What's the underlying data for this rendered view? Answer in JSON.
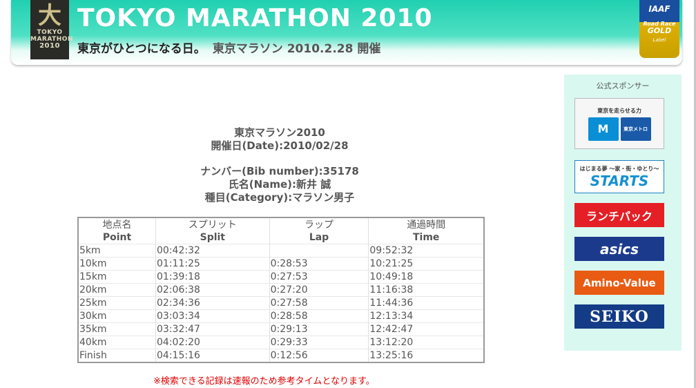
{
  "banner": {
    "logo_glyph": "大",
    "logo_line1": "TOKYO",
    "logo_line2": "MARATHON",
    "logo_line3": "2010",
    "title": "TOKYO MARATHON 2010",
    "subtitle_a": "東京がひとつになる日。",
    "subtitle_b": "東京マラソン 2010.2.28 開催",
    "iaaf_title": "IAAF",
    "iaaf_road": "Road Race",
    "iaaf_gold": "GOLD",
    "iaaf_label": "Label"
  },
  "sponsors": {
    "heading": "公式スポンサー",
    "metro_caption": "東京を走らせる力",
    "metro_mark": "M",
    "metro_name": "東京メトロ",
    "starts_caption": "はじまる夢 〜家・街・ゆとり〜",
    "starts_name": "STARTS",
    "lunch": "ランチパック",
    "asics": "asics",
    "amino": "Amino-Value",
    "seiko": "SEIKO"
  },
  "info": {
    "event": "東京マラソン2010",
    "date": "開催日(Date):2010/02/28",
    "bib": "ナンバー(Bib number):35178",
    "name": "氏名(Name):新井 誠",
    "category": "種目(Category):マラソン男子"
  },
  "table": {
    "headers": [
      {
        "ja": "地点名",
        "en": "Point"
      },
      {
        "ja": "スプリット",
        "en": "Split"
      },
      {
        "ja": "ラップ",
        "en": "Lap"
      },
      {
        "ja": "通過時間",
        "en": "Time"
      }
    ],
    "rows": [
      [
        "5km",
        "00:42:32",
        "",
        "09:52:32"
      ],
      [
        "10km",
        "01:11:25",
        "0:28:53",
        "10:21:25"
      ],
      [
        "15km",
        "01:39:18",
        "0:27:53",
        "10:49:18"
      ],
      [
        "20km",
        "02:06:38",
        "0:27:20",
        "11:16:38"
      ],
      [
        "25km",
        "02:34:36",
        "0:27:58",
        "11:44:36"
      ],
      [
        "30km",
        "03:03:34",
        "0:28:58",
        "12:13:34"
      ],
      [
        "35km",
        "03:32:47",
        "0:29:13",
        "12:42:47"
      ],
      [
        "40km",
        "04:02:20",
        "0:29:33",
        "13:12:20"
      ],
      [
        "Finish",
        "04:15:16",
        "0:12:56",
        "13:25:16"
      ]
    ]
  },
  "note": "※検索できる記録は速報のため参考タイムとなります。"
}
